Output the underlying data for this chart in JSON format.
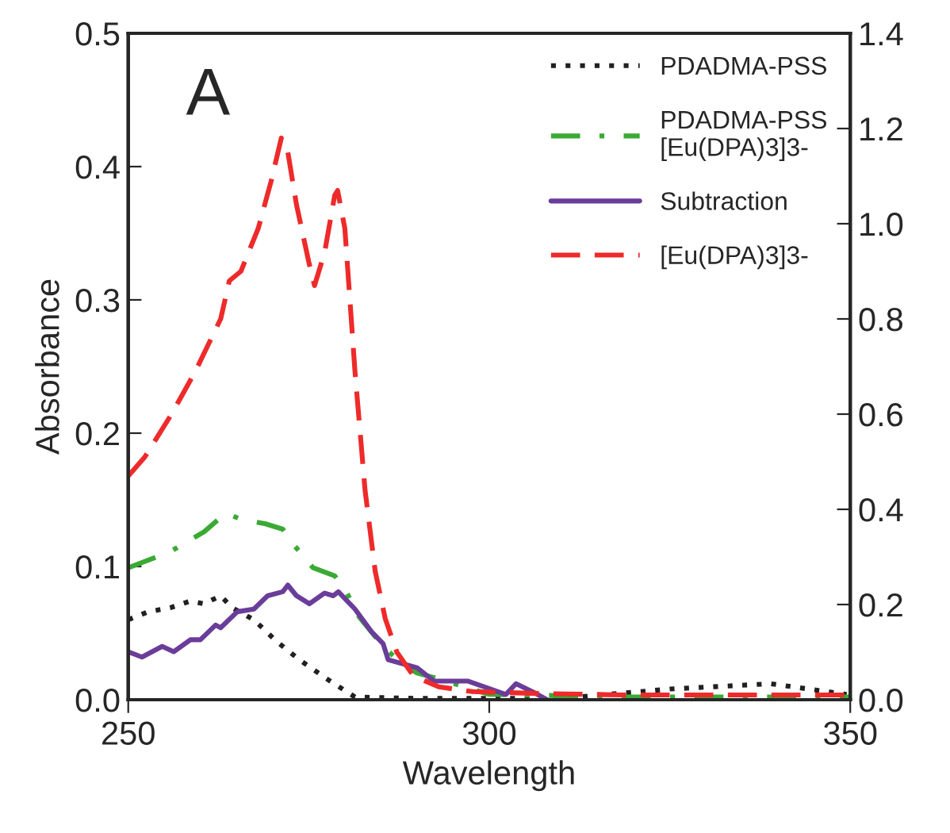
{
  "chart_data": {
    "type": "line",
    "xlabel": "Wavelength",
    "ylabel": "Absorbance",
    "annotations": [
      "A"
    ],
    "xlim": [
      250,
      350
    ],
    "xticks": [
      250,
      300,
      350
    ],
    "ylim": [
      0,
      0.5
    ],
    "yticks": [
      {
        "value": 0,
        "label": "0.0"
      },
      0.1,
      0.2,
      0.3,
      0.4,
      0.5
    ],
    "y2lim": [
      0,
      1.4
    ],
    "y2ticks": [
      {
        "value": 0,
        "label": "0.0"
      },
      0.2,
      0.4,
      0.6,
      0.8,
      {
        "value": 1,
        "label": "1.0"
      },
      1.2,
      1.4
    ],
    "legend": "top right",
    "grid": false,
    "marker": "none",
    "series": [
      {
        "name": "PDADMA-PSS",
        "color": "#231f20",
        "line_style": "dotted",
        "x": [
          250,
          252.8,
          255.8,
          258.6,
          260.5,
          262.8,
          264.4,
          267.4,
          270.5,
          273.7,
          277.4,
          281.4,
          290,
          310,
          325,
          339,
          349.5
        ],
        "values": [
          0.06,
          0.066,
          0.069,
          0.074,
          0.072,
          0.078,
          0.069,
          0.06,
          0.044,
          0.03,
          0.016,
          0.002,
          0.001,
          0.001,
          0.008,
          0.012,
          0.004
        ]
      },
      {
        "name": "PDADMA-PSS\n[Eu(DPA)3]3-",
        "color": "#3aaa35",
        "line_style": "dashdot",
        "x": [
          250,
          255.8,
          260.5,
          263.5,
          265.8,
          269,
          271.4,
          272.8,
          275.6,
          278.6,
          280.2,
          282,
          285.3,
          287.7,
          290,
          292.8,
          300,
          320,
          350
        ],
        "values": [
          0.099,
          0.111,
          0.126,
          0.14,
          0.135,
          0.132,
          0.128,
          0.117,
          0.099,
          0.093,
          0.081,
          0.062,
          0.04,
          0.028,
          0.02,
          0.016,
          0.004,
          0.002,
          0.002
        ]
      },
      {
        "name": "Subtraction",
        "color": "#6a3d9a",
        "line_style": "solid",
        "x": [
          250,
          251.9,
          254.7,
          256.3,
          258.6,
          260,
          262.1,
          262.8,
          265.1,
          267.4,
          269.3,
          271.4,
          272.1,
          273.3,
          275.1,
          277.2,
          278.4,
          279.1,
          281.4,
          283.7,
          285.3,
          286,
          290,
          292.3,
          297,
          302.3,
          303.7,
          306,
          308
        ],
        "values": [
          0.036,
          0.032,
          0.04,
          0.036,
          0.045,
          0.045,
          0.056,
          0.054,
          0.066,
          0.068,
          0.078,
          0.081,
          0.086,
          0.078,
          0.072,
          0.08,
          0.078,
          0.081,
          0.068,
          0.051,
          0.042,
          0.03,
          0.024,
          0.014,
          0.014,
          0.004,
          0.012,
          0.006,
          0.0
        ]
      },
      {
        "name": "[Eu(DPA)3]3-",
        "color": "#ee2a2a",
        "line_style": "dashed",
        "axis": "y2",
        "x": [
          250,
          252.3,
          256,
          259.3,
          262.8,
          264,
          265.6,
          268,
          269.8,
          271.2,
          272,
          273.3,
          275,
          275.8,
          277.2,
          278.6,
          279,
          280,
          281.4,
          282.8,
          284.2,
          285.6,
          287.2,
          289.5,
          293,
          297.7,
          307,
          318.6,
          350
        ],
        "values": [
          0.47,
          0.51,
          0.6,
          0.69,
          0.8,
          0.88,
          0.9,
          0.99,
          1.09,
          1.18,
          1.16,
          1.04,
          0.92,
          0.87,
          0.94,
          1.06,
          1.07,
          0.99,
          0.69,
          0.44,
          0.27,
          0.17,
          0.1,
          0.05,
          0.027,
          0.017,
          0.013,
          0.01,
          0.01
        ]
      }
    ]
  }
}
